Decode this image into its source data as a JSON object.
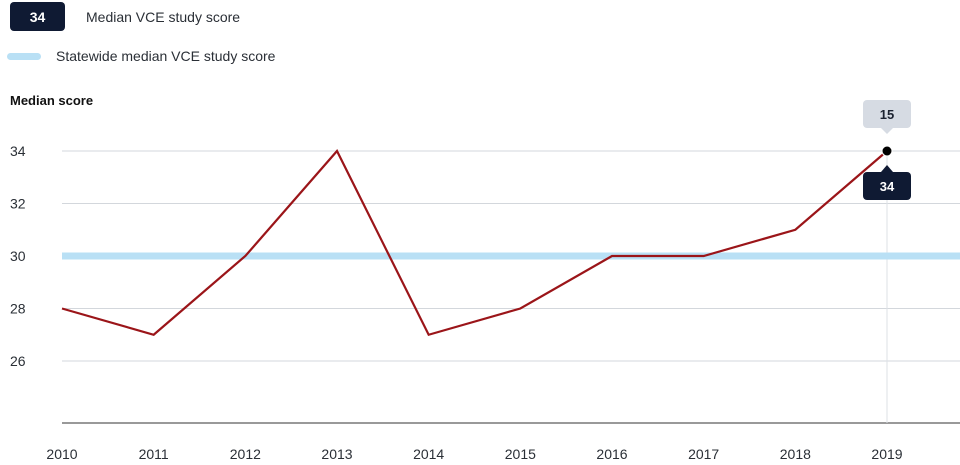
{
  "legend": {
    "badge_value": "34",
    "school_label": "Median VCE study score",
    "statewide_label": "Statewide median VCE study score"
  },
  "colors": {
    "school_line": "#9b1519",
    "statewide_line": "#b9e0f5",
    "badge_bg": "#0f1a33",
    "tooltip_top_bg": "#d6dbe3"
  },
  "tooltip": {
    "top_value": "15",
    "bottom_value": "34",
    "x": "2019"
  },
  "chart_data": {
    "type": "line",
    "title": "",
    "ylabel": "Median score",
    "xlabel": "",
    "x": [
      "2010",
      "2011",
      "2012",
      "2013",
      "2014",
      "2015",
      "2016",
      "2017",
      "2018",
      "2019"
    ],
    "series": [
      {
        "name": "Median VCE study score",
        "values": [
          28,
          27,
          30,
          34,
          27,
          28,
          30,
          30,
          31,
          34
        ]
      },
      {
        "name": "Statewide median VCE study score",
        "values": [
          30,
          30,
          30,
          30,
          30,
          30,
          30,
          30,
          30,
          30
        ]
      }
    ],
    "yticks": [
      26,
      28,
      30,
      32,
      34
    ],
    "ylim": [
      23.6,
      35.9
    ],
    "grid": true,
    "legend_position": "top-left"
  }
}
